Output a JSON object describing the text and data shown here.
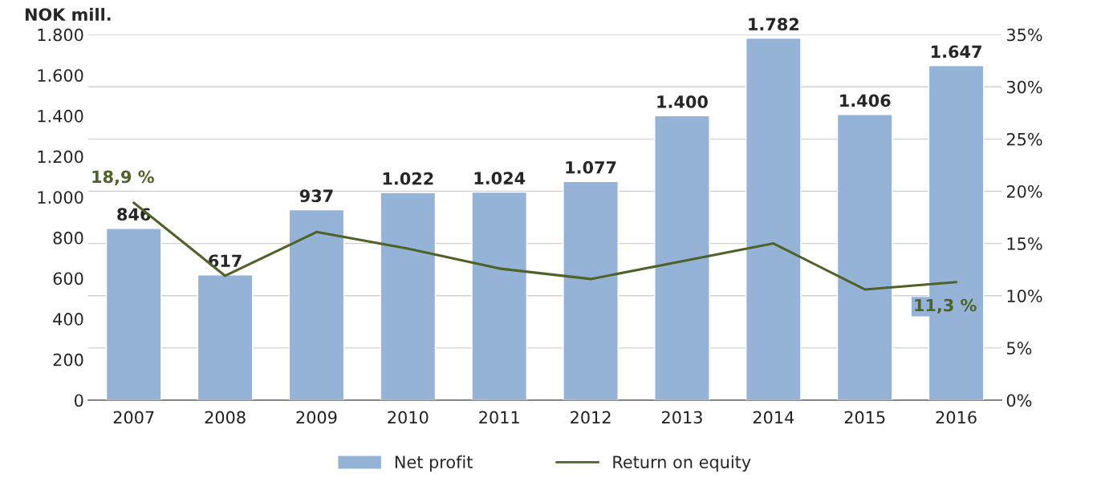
{
  "chart_data": {
    "type": "bar",
    "title": "NOK mill.",
    "categories": [
      "2007",
      "2008",
      "2009",
      "2010",
      "2011",
      "2012",
      "2013",
      "2014",
      "2015",
      "2016"
    ],
    "series": [
      {
        "name": "Net profit",
        "color": "#95b3d7",
        "values": [
          846,
          617,
          937,
          1022,
          1024,
          1077,
          1400,
          1782,
          1406,
          1647
        ],
        "value_labels": [
          "846",
          "617",
          "937",
          "1.022",
          "1.024",
          "1.077",
          "1.400",
          "1.782",
          "1.406",
          "1.647"
        ]
      },
      {
        "name": "Return on equity",
        "type": "line",
        "axis": "y2",
        "color": "#4f6228",
        "values": [
          18.9,
          11.9,
          16.1,
          14.5,
          12.6,
          11.6,
          13.3,
          15.0,
          10.6,
          11.3
        ],
        "value_labels": [
          "18,9 %",
          null,
          null,
          null,
          null,
          null,
          null,
          null,
          null,
          "11,3 %"
        ]
      }
    ],
    "ylim": [
      0,
      1800
    ],
    "yticks": [
      {
        "value": 0,
        "label": "0"
      },
      {
        "value": 200,
        "label": "200"
      },
      {
        "value": 400,
        "label": "400"
      },
      {
        "value": 600,
        "label": "600"
      },
      {
        "value": 800,
        "label": "800"
      },
      {
        "value": 1000,
        "label": "1.000"
      },
      {
        "value": 1200,
        "label": "1.200"
      },
      {
        "value": 1400,
        "label": "1.400"
      },
      {
        "value": 1600,
        "label": "1.600"
      },
      {
        "value": 1800,
        "label": "1.800"
      }
    ],
    "y2lim": [
      0,
      35
    ],
    "y2ticks": [
      {
        "value": 0,
        "label": "0%"
      },
      {
        "value": 5,
        "label": "5%"
      },
      {
        "value": 10,
        "label": "10%"
      },
      {
        "value": 15,
        "label": "15%"
      },
      {
        "value": 20,
        "label": "20%"
      },
      {
        "value": 25,
        "label": "25%"
      },
      {
        "value": 30,
        "label": "30%"
      },
      {
        "value": 35,
        "label": "35%"
      }
    ],
    "grid": "y2",
    "legend": "bottom"
  }
}
